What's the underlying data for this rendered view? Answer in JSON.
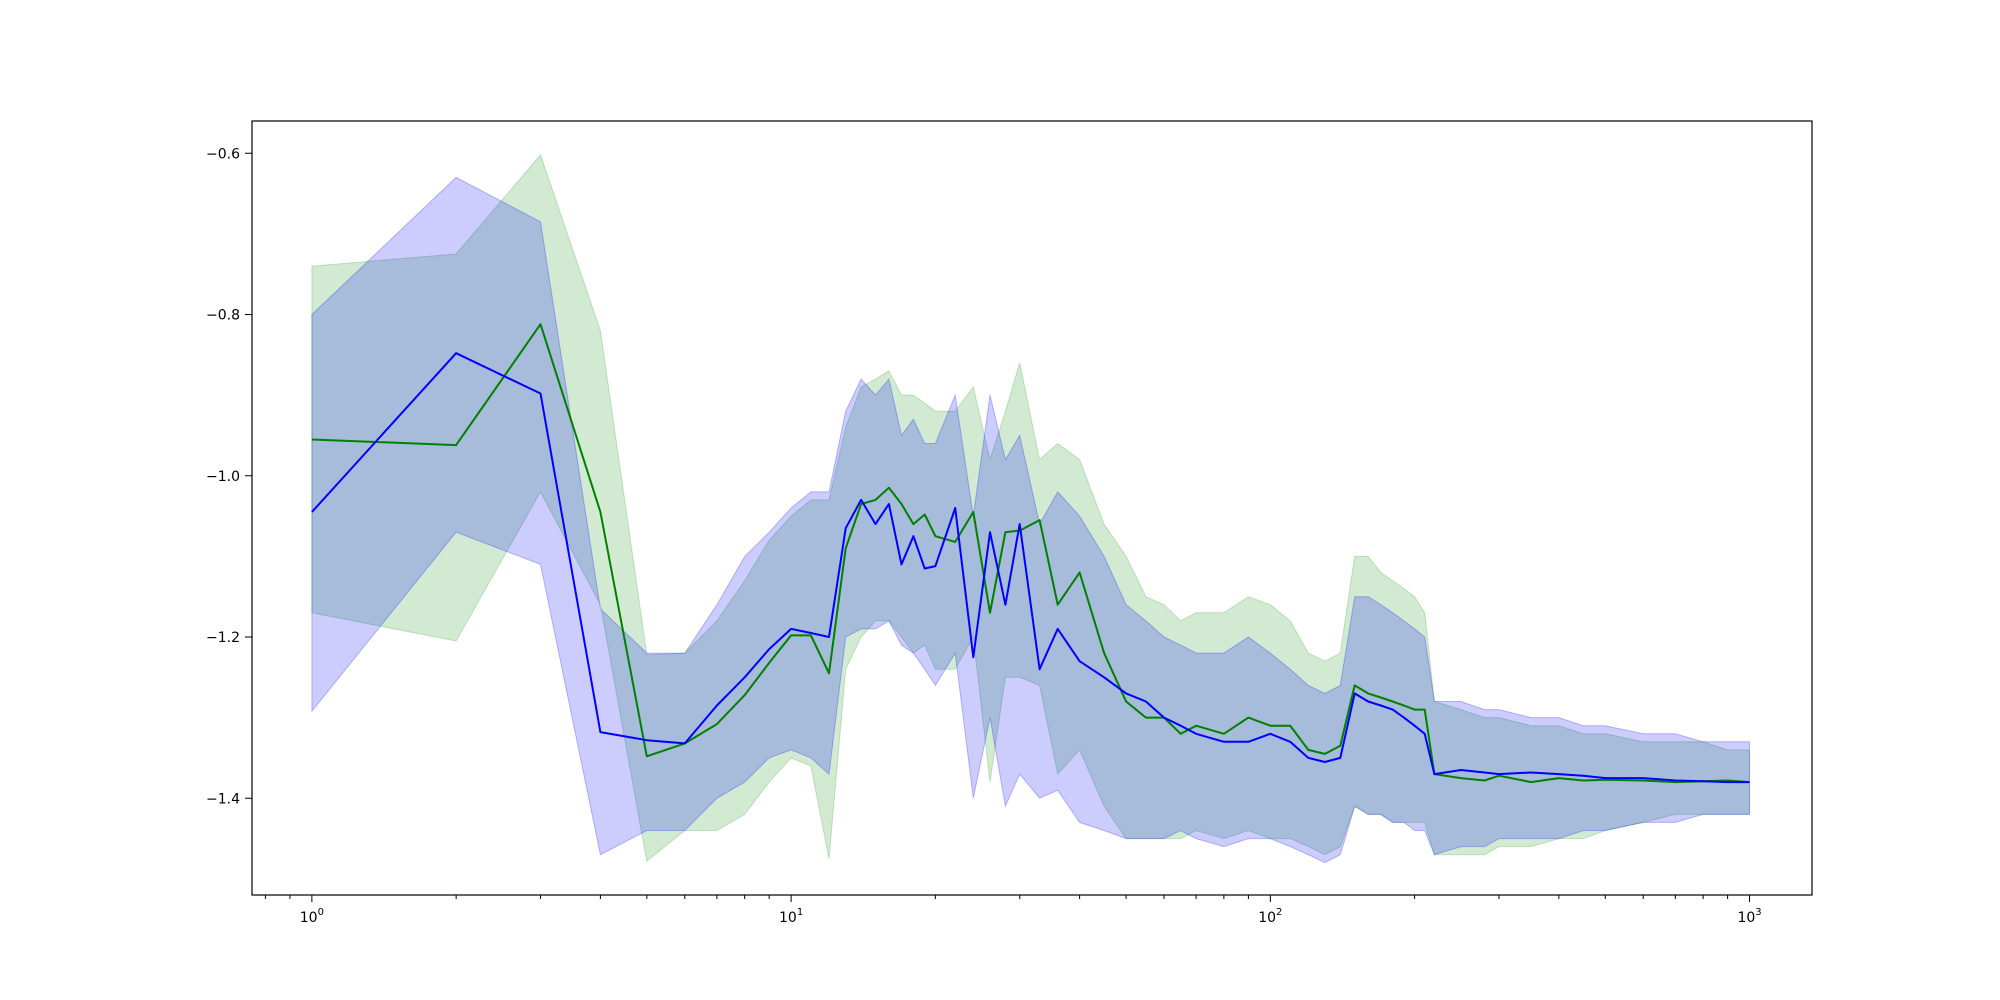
{
  "chart_data": {
    "type": "line",
    "title": "",
    "xlabel": "",
    "ylabel": "",
    "xscale": "log",
    "xlim": [
      0.75,
      1350
    ],
    "ylim": [
      -1.52,
      -0.56
    ],
    "grid": false,
    "legend": "none",
    "x_ticks": [
      {
        "value": 1,
        "base": "10",
        "exp": "0"
      },
      {
        "value": 10,
        "base": "10",
        "exp": "1"
      },
      {
        "value": 100,
        "base": "10",
        "exp": "2"
      },
      {
        "value": 1000,
        "base": "10",
        "exp": "3"
      }
    ],
    "y_ticks": [
      {
        "value": -1.4,
        "label": "−1.4"
      },
      {
        "value": -1.2,
        "label": "−1.2"
      },
      {
        "value": -1.0,
        "label": "−1.0"
      },
      {
        "value": -0.8,
        "label": "−0.8"
      },
      {
        "value": -0.6,
        "label": "−0.6"
      }
    ],
    "series": [
      {
        "color": "#008000",
        "band_color": "#2ca02c",
        "x": [
          1,
          2,
          3,
          4,
          5,
          6,
          7,
          8,
          9,
          10,
          11,
          12,
          13,
          14,
          15,
          16,
          17,
          18,
          19,
          20,
          22,
          24,
          26,
          28,
          30,
          33,
          36,
          40,
          45,
          50,
          55,
          60,
          65,
          70,
          80,
          90,
          100,
          110,
          120,
          130,
          140,
          150,
          160,
          170,
          180,
          190,
          200,
          210,
          220,
          250,
          280,
          300,
          350,
          400,
          450,
          500,
          600,
          700,
          800,
          900,
          1000
        ],
        "y": [
          -0.955,
          -0.962,
          -0.812,
          -1.045,
          -1.348,
          -1.332,
          -1.308,
          -1.272,
          -1.232,
          -1.198,
          -1.198,
          -1.245,
          -1.09,
          -1.035,
          -1.03,
          -1.015,
          -1.035,
          -1.06,
          -1.048,
          -1.075,
          -1.082,
          -1.045,
          -1.17,
          -1.07,
          -1.068,
          -1.055,
          -1.16,
          -1.12,
          -1.22,
          -1.28,
          -1.3,
          -1.3,
          -1.32,
          -1.31,
          -1.32,
          -1.3,
          -1.31,
          -1.31,
          -1.34,
          -1.345,
          -1.335,
          -1.26,
          -1.27,
          -1.275,
          -1.28,
          -1.285,
          -1.29,
          -1.29,
          -1.37,
          -1.375,
          -1.378,
          -1.372,
          -1.38,
          -1.375,
          -1.378,
          -1.377,
          -1.378,
          -1.38,
          -1.379,
          -1.378,
          -1.38
        ],
        "lower": [
          -1.17,
          -1.205,
          -1.02,
          -1.16,
          -1.478,
          -1.44,
          -1.44,
          -1.42,
          -1.38,
          -1.35,
          -1.36,
          -1.475,
          -1.24,
          -1.2,
          -1.18,
          -1.18,
          -1.2,
          -1.22,
          -1.21,
          -1.24,
          -1.24,
          -1.2,
          -1.38,
          -1.25,
          -1.25,
          -1.26,
          -1.37,
          -1.34,
          -1.41,
          -1.45,
          -1.45,
          -1.45,
          -1.45,
          -1.44,
          -1.45,
          -1.44,
          -1.45,
          -1.45,
          -1.46,
          -1.47,
          -1.46,
          -1.41,
          -1.42,
          -1.42,
          -1.43,
          -1.43,
          -1.43,
          -1.43,
          -1.47,
          -1.47,
          -1.47,
          -1.46,
          -1.46,
          -1.45,
          -1.45,
          -1.44,
          -1.43,
          -1.42,
          -1.42,
          -1.42,
          -1.42
        ],
        "upper": [
          -0.74,
          -0.725,
          -0.602,
          -0.82,
          -1.222,
          -1.22,
          -1.18,
          -1.13,
          -1.08,
          -1.05,
          -1.03,
          -1.03,
          -0.94,
          -0.89,
          -0.88,
          -0.87,
          -0.9,
          -0.9,
          -0.91,
          -0.92,
          -0.92,
          -0.89,
          -0.98,
          -0.92,
          -0.86,
          -0.98,
          -0.96,
          -0.98,
          -1.06,
          -1.1,
          -1.15,
          -1.16,
          -1.18,
          -1.17,
          -1.17,
          -1.15,
          -1.16,
          -1.18,
          -1.22,
          -1.23,
          -1.22,
          -1.1,
          -1.1,
          -1.12,
          -1.13,
          -1.14,
          -1.15,
          -1.17,
          -1.28,
          -1.29,
          -1.3,
          -1.3,
          -1.31,
          -1.31,
          -1.32,
          -1.32,
          -1.33,
          -1.33,
          -1.33,
          -1.34,
          -1.34
        ]
      },
      {
        "color": "#0000ff",
        "band_color": "#0000ff",
        "x": [
          1,
          2,
          3,
          4,
          5,
          6,
          7,
          8,
          9,
          10,
          11,
          12,
          13,
          14,
          15,
          16,
          17,
          18,
          19,
          20,
          22,
          24,
          26,
          28,
          30,
          33,
          36,
          40,
          45,
          50,
          55,
          60,
          65,
          70,
          80,
          90,
          100,
          110,
          120,
          130,
          140,
          150,
          160,
          170,
          180,
          190,
          200,
          210,
          220,
          250,
          280,
          300,
          350,
          400,
          450,
          500,
          600,
          700,
          800,
          900,
          1000
        ],
        "y": [
          -1.045,
          -0.848,
          -0.898,
          -1.318,
          -1.328,
          -1.332,
          -1.285,
          -1.25,
          -1.215,
          -1.19,
          -1.195,
          -1.2,
          -1.065,
          -1.03,
          -1.06,
          -1.035,
          -1.11,
          -1.075,
          -1.115,
          -1.112,
          -1.04,
          -1.225,
          -1.07,
          -1.16,
          -1.06,
          -1.24,
          -1.19,
          -1.23,
          -1.25,
          -1.27,
          -1.28,
          -1.3,
          -1.31,
          -1.32,
          -1.33,
          -1.33,
          -1.32,
          -1.33,
          -1.35,
          -1.355,
          -1.35,
          -1.27,
          -1.28,
          -1.285,
          -1.29,
          -1.3,
          -1.31,
          -1.32,
          -1.37,
          -1.365,
          -1.368,
          -1.37,
          -1.368,
          -1.37,
          -1.372,
          -1.375,
          -1.375,
          -1.378,
          -1.379,
          -1.38,
          -1.38
        ],
        "lower": [
          -1.292,
          -1.07,
          -1.11,
          -1.47,
          -1.44,
          -1.44,
          -1.4,
          -1.38,
          -1.35,
          -1.34,
          -1.35,
          -1.37,
          -1.2,
          -1.19,
          -1.19,
          -1.18,
          -1.21,
          -1.22,
          -1.24,
          -1.26,
          -1.22,
          -1.4,
          -1.3,
          -1.41,
          -1.37,
          -1.4,
          -1.39,
          -1.43,
          -1.44,
          -1.45,
          -1.45,
          -1.45,
          -1.44,
          -1.45,
          -1.46,
          -1.45,
          -1.45,
          -1.46,
          -1.47,
          -1.48,
          -1.47,
          -1.41,
          -1.42,
          -1.42,
          -1.43,
          -1.43,
          -1.44,
          -1.44,
          -1.47,
          -1.46,
          -1.46,
          -1.45,
          -1.45,
          -1.45,
          -1.44,
          -1.44,
          -1.43,
          -1.43,
          -1.42,
          -1.42,
          -1.42
        ],
        "upper": [
          -0.8,
          -0.63,
          -0.685,
          -1.165,
          -1.22,
          -1.22,
          -1.16,
          -1.1,
          -1.07,
          -1.04,
          -1.02,
          -1.02,
          -0.92,
          -0.88,
          -0.9,
          -0.88,
          -0.95,
          -0.93,
          -0.96,
          -0.96,
          -0.9,
          -1.05,
          -0.9,
          -0.98,
          -0.95,
          -1.06,
          -1.02,
          -1.05,
          -1.1,
          -1.16,
          -1.18,
          -1.2,
          -1.21,
          -1.22,
          -1.22,
          -1.2,
          -1.22,
          -1.24,
          -1.26,
          -1.27,
          -1.26,
          -1.15,
          -1.15,
          -1.16,
          -1.17,
          -1.18,
          -1.19,
          -1.2,
          -1.28,
          -1.28,
          -1.29,
          -1.29,
          -1.3,
          -1.3,
          -1.31,
          -1.31,
          -1.32,
          -1.32,
          -1.33,
          -1.33,
          -1.33
        ]
      }
    ]
  }
}
